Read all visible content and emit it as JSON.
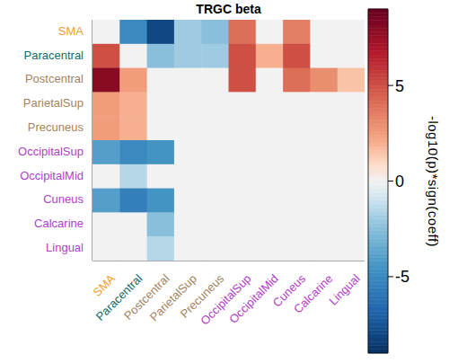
{
  "chart_data": {
    "type": "heatmap",
    "title": "TRGC beta",
    "x": [
      "SMA",
      "Paracentral",
      "Postcentral",
      "ParietalSup",
      "Precuneus",
      "OccipitalSup",
      "OccipitalMid",
      "Cuneus",
      "Calcarine",
      "Lingual"
    ],
    "y": [
      "SMA",
      "Paracentral",
      "Postcentral",
      "ParietalSup",
      "Precuneus",
      "OccipitalSup",
      "OccipitalMid",
      "Cuneus",
      "Calcarine",
      "Lingual"
    ],
    "values": [
      [
        0,
        -5,
        -8,
        -2,
        -2.5,
        4,
        0,
        3.5,
        0,
        0
      ],
      [
        5,
        0,
        -2.5,
        -2,
        -2,
        5,
        2,
        5,
        0,
        0
      ],
      [
        8,
        2.5,
        0,
        0,
        0,
        5,
        0,
        4,
        3,
        1.5
      ],
      [
        2.5,
        2,
        0,
        0,
        0,
        0,
        0,
        0,
        0,
        0
      ],
      [
        2.5,
        2,
        0,
        0,
        0,
        0,
        0,
        0,
        0,
        0
      ],
      [
        -4,
        -5,
        -4.5,
        0,
        0,
        0,
        0,
        0,
        0,
        0
      ],
      [
        0,
        -1.5,
        0,
        0,
        0,
        0,
        0,
        0,
        0,
        0
      ],
      [
        -4,
        -5.5,
        -4.5,
        0,
        0,
        0,
        0,
        0,
        0,
        0
      ],
      [
        0,
        0,
        -2.5,
        0,
        0,
        0,
        0,
        0,
        0,
        0
      ],
      [
        0,
        0,
        -1.5,
        0,
        0,
        0,
        0,
        0,
        0,
        0
      ]
    ],
    "colorbar": {
      "label": "-log10(p)*sign(coeff)",
      "range": [
        -9,
        9
      ],
      "ticks": [
        -5,
        0,
        5
      ]
    }
  }
}
